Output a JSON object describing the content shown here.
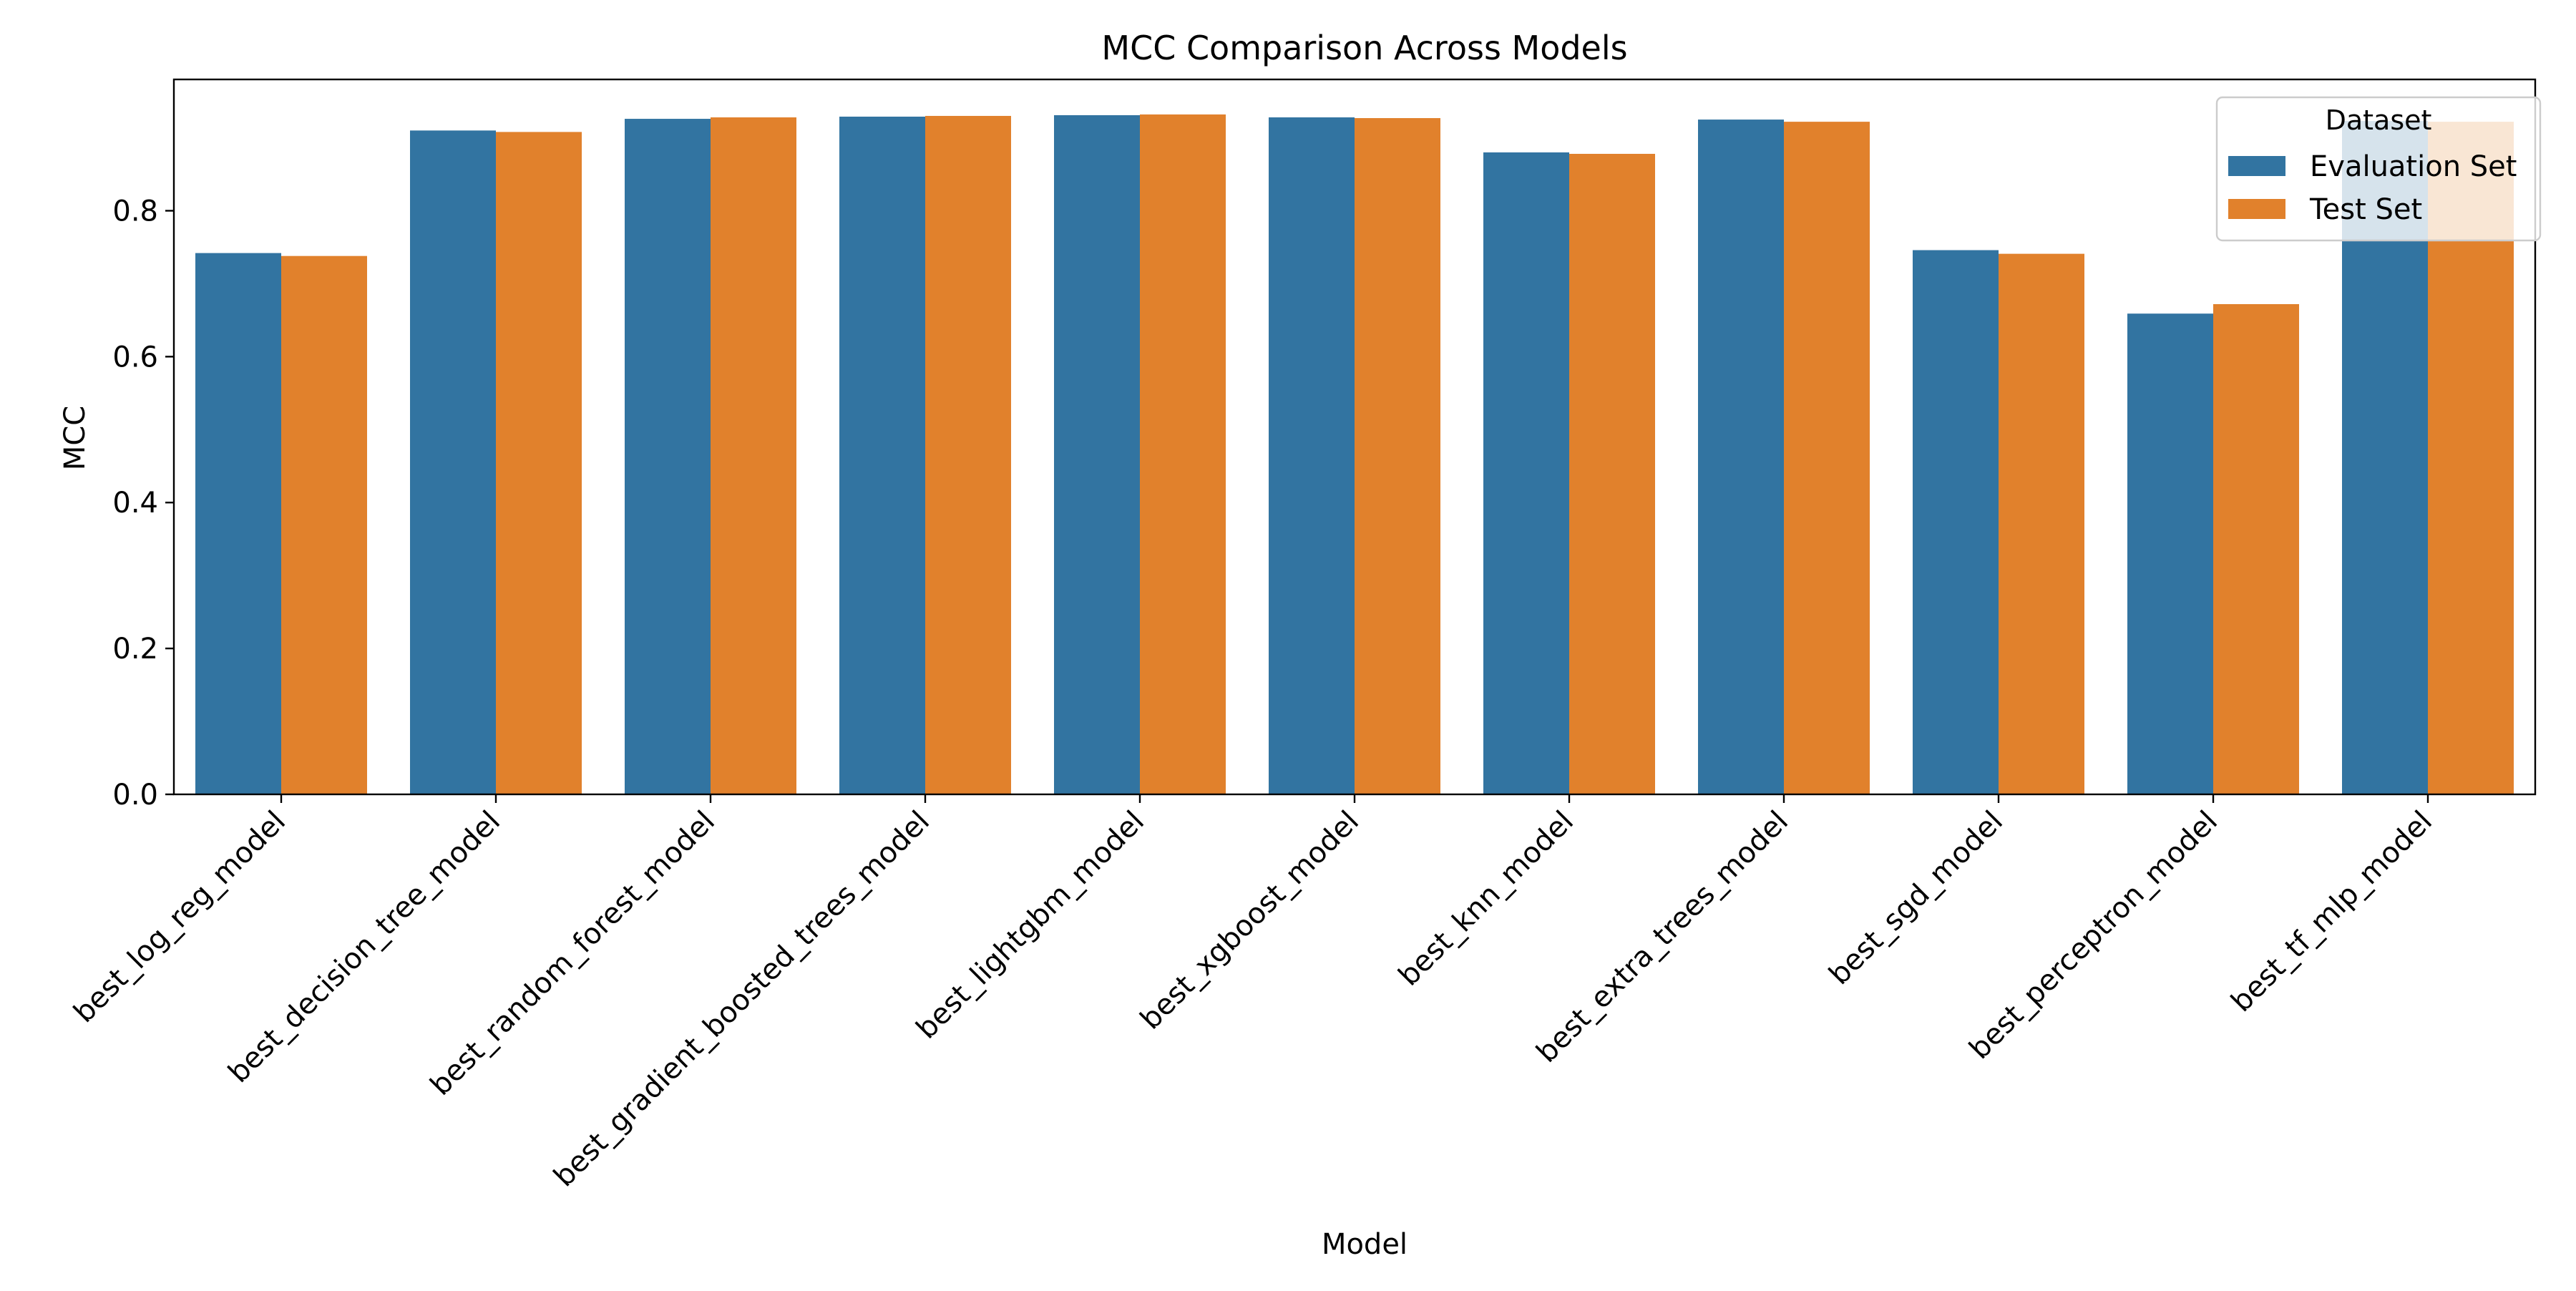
{
  "chart_data": {
    "type": "bar",
    "title": "MCC Comparison Across Models",
    "xlabel": "Model",
    "ylabel": "MCC",
    "ylim": [
      0,
      0.98
    ],
    "yticks": [
      0.0,
      0.2,
      0.4,
      0.6,
      0.8
    ],
    "ytick_labels": [
      "0.0",
      "0.2",
      "0.4",
      "0.6",
      "0.8"
    ],
    "grid": false,
    "legend_placement": "top-right",
    "legend_title": "Dataset",
    "categories": [
      "best_log_reg_model",
      "best_decision_tree_model",
      "best_random_forest_model",
      "best_gradient_boosted_trees_model",
      "best_lightgbm_model",
      "best_xgboost_model",
      "best_knn_model",
      "best_extra_trees_model",
      "best_sgd_model",
      "best_perceptron_model",
      "best_tf_mlp_model"
    ],
    "series": [
      {
        "name": "Evaluation Set",
        "color": "#3274a1",
        "values": [
          0.742,
          0.91,
          0.926,
          0.929,
          0.931,
          0.928,
          0.88,
          0.925,
          0.746,
          0.659,
          0.923
        ]
      },
      {
        "name": "Test Set",
        "color": "#e1812c",
        "values": [
          0.738,
          0.908,
          0.928,
          0.93,
          0.932,
          0.927,
          0.878,
          0.922,
          0.741,
          0.672,
          0.922
        ]
      }
    ]
  }
}
